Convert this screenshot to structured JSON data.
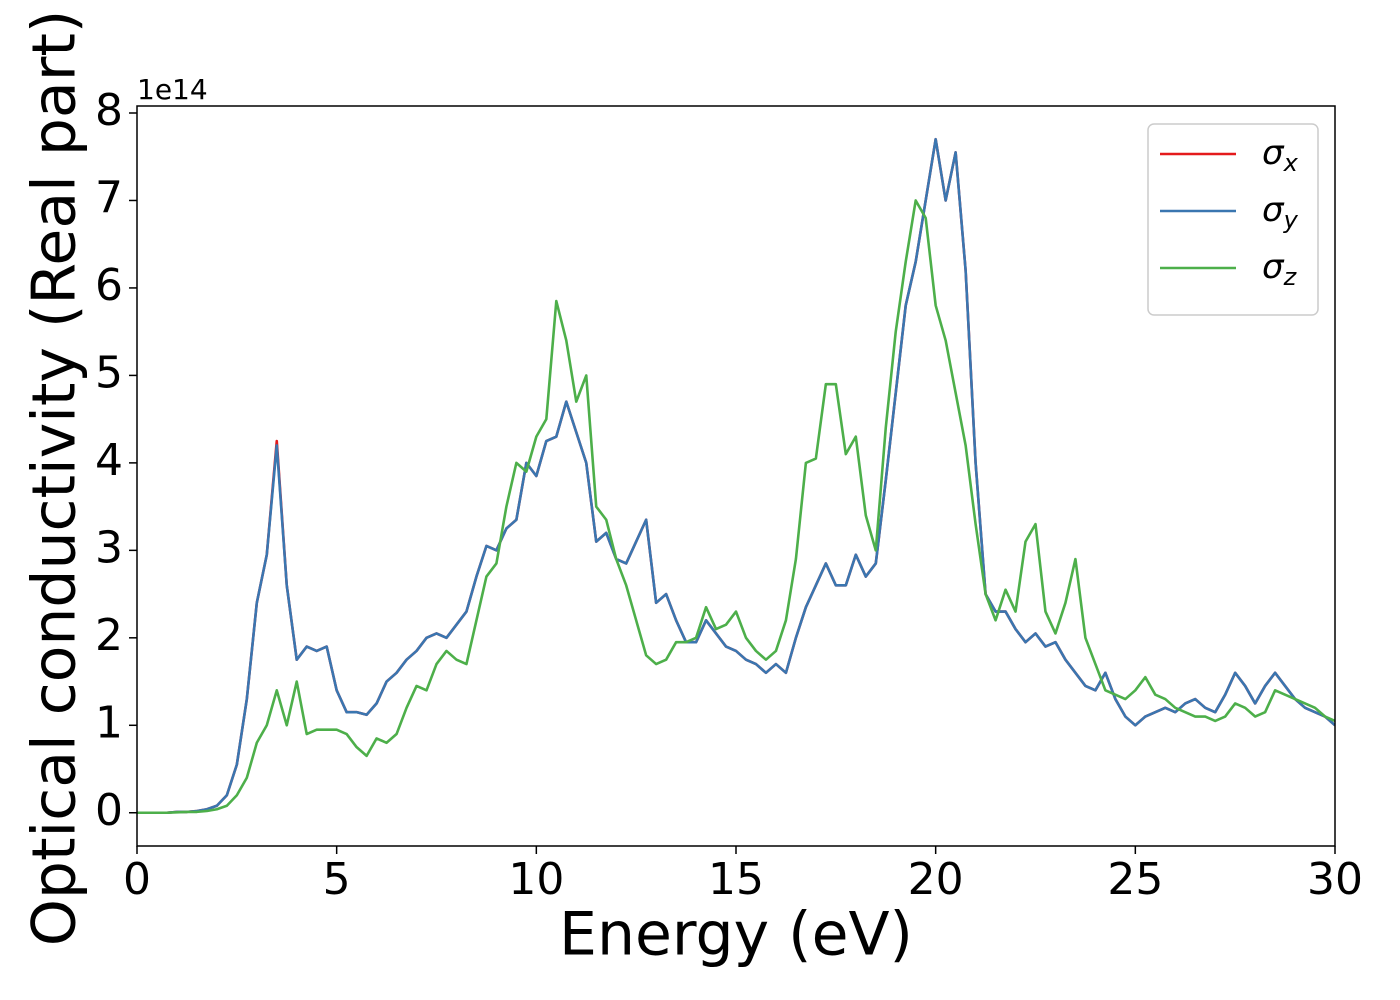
{
  "chart_data": {
    "type": "line",
    "x_label": "Energy (eV)",
    "y_label": "Optical conductivity (Real part)",
    "y_offset_label": "1e14",
    "xlim": [
      0,
      30
    ],
    "ylim": [
      -0.38,
      8.08
    ],
    "xticks": [
      0,
      5,
      10,
      15,
      20,
      25,
      30
    ],
    "yticks": [
      0,
      1,
      2,
      3,
      4,
      5,
      6,
      7,
      8
    ],
    "legend_position": "upper right",
    "x": [
      0,
      0.25,
      0.5,
      0.75,
      1,
      1.25,
      1.5,
      1.75,
      2,
      2.25,
      2.5,
      2.75,
      3,
      3.25,
      3.5,
      3.75,
      4,
      4.25,
      4.5,
      4.75,
      5,
      5.25,
      5.5,
      5.75,
      6,
      6.25,
      6.5,
      6.75,
      7,
      7.25,
      7.5,
      7.75,
      8,
      8.25,
      8.5,
      8.75,
      9,
      9.25,
      9.5,
      9.75,
      10,
      10.25,
      10.5,
      10.75,
      11,
      11.25,
      11.5,
      11.75,
      12,
      12.25,
      12.5,
      12.75,
      13,
      13.25,
      13.5,
      13.75,
      14,
      14.25,
      14.5,
      14.75,
      15,
      15.25,
      15.5,
      15.75,
      16,
      16.25,
      16.5,
      16.75,
      17,
      17.25,
      17.5,
      17.75,
      18,
      18.25,
      18.5,
      18.75,
      19,
      19.25,
      19.5,
      19.75,
      20,
      20.25,
      20.5,
      20.75,
      21,
      21.25,
      21.5,
      21.75,
      22,
      22.25,
      22.5,
      22.75,
      23,
      23.25,
      23.5,
      23.75,
      24,
      24.25,
      24.5,
      24.75,
      25,
      25.25,
      25.5,
      25.75,
      26,
      26.25,
      26.5,
      26.75,
      27,
      27.25,
      27.5,
      27.75,
      28,
      28.25,
      28.5,
      28.75,
      29,
      29.25,
      29.5,
      29.75,
      30
    ],
    "series": [
      {
        "name": "σx",
        "color": "#e41a1c",
        "values": [
          0,
          0,
          0,
          0,
          0.01,
          0.01,
          0.02,
          0.04,
          0.08,
          0.2,
          0.55,
          1.3,
          2.4,
          2.95,
          4.25,
          2.6,
          1.75,
          1.9,
          1.85,
          1.9,
          1.4,
          1.15,
          1.15,
          1.12,
          1.25,
          1.5,
          1.6,
          1.75,
          1.85,
          2.0,
          2.05,
          2.0,
          2.15,
          2.3,
          2.7,
          3.05,
          3.0,
          3.25,
          3.35,
          4.0,
          3.85,
          4.25,
          4.3,
          4.7,
          4.35,
          4.0,
          3.1,
          3.2,
          2.9,
          2.85,
          3.1,
          3.35,
          2.4,
          2.5,
          2.2,
          1.95,
          1.95,
          2.2,
          2.05,
          1.9,
          1.85,
          1.75,
          1.7,
          1.6,
          1.7,
          1.6,
          2.0,
          2.35,
          2.6,
          2.85,
          2.6,
          2.6,
          2.95,
          2.7,
          2.85,
          3.8,
          4.8,
          5.8,
          6.3,
          7.0,
          7.7,
          7.0,
          7.55,
          6.2,
          4.0,
          2.5,
          2.3,
          2.3,
          2.1,
          1.95,
          2.05,
          1.9,
          1.95,
          1.75,
          1.6,
          1.45,
          1.4,
          1.6,
          1.3,
          1.1,
          1.0,
          1.1,
          1.15,
          1.2,
          1.15,
          1.25,
          1.3,
          1.2,
          1.15,
          1.35,
          1.6,
          1.45,
          1.25,
          1.45,
          1.6,
          1.45,
          1.3,
          1.2,
          1.15,
          1.1,
          1.0
        ]
      },
      {
        "name": "σy",
        "color": "#3a76b0",
        "values": [
          0,
          0,
          0,
          0,
          0.01,
          0.01,
          0.02,
          0.04,
          0.08,
          0.2,
          0.55,
          1.3,
          2.4,
          2.95,
          4.2,
          2.6,
          1.75,
          1.9,
          1.85,
          1.9,
          1.4,
          1.15,
          1.15,
          1.12,
          1.25,
          1.5,
          1.6,
          1.75,
          1.85,
          2.0,
          2.05,
          2.0,
          2.15,
          2.3,
          2.7,
          3.05,
          3.0,
          3.25,
          3.35,
          4.0,
          3.85,
          4.25,
          4.3,
          4.7,
          4.35,
          4.0,
          3.1,
          3.2,
          2.9,
          2.85,
          3.1,
          3.35,
          2.4,
          2.5,
          2.2,
          1.95,
          1.95,
          2.2,
          2.05,
          1.9,
          1.85,
          1.75,
          1.7,
          1.6,
          1.7,
          1.6,
          2.0,
          2.35,
          2.6,
          2.85,
          2.6,
          2.6,
          2.95,
          2.7,
          2.85,
          3.8,
          4.8,
          5.8,
          6.3,
          7.0,
          7.7,
          7.0,
          7.55,
          6.2,
          4.0,
          2.5,
          2.3,
          2.3,
          2.1,
          1.95,
          2.05,
          1.9,
          1.95,
          1.75,
          1.6,
          1.45,
          1.4,
          1.6,
          1.3,
          1.1,
          1.0,
          1.1,
          1.15,
          1.2,
          1.15,
          1.25,
          1.3,
          1.2,
          1.15,
          1.35,
          1.6,
          1.45,
          1.25,
          1.45,
          1.6,
          1.45,
          1.3,
          1.2,
          1.15,
          1.1,
          1.0
        ]
      },
      {
        "name": "σz",
        "color": "#4daf4a",
        "values": [
          0,
          0,
          0,
          0,
          0.005,
          0.01,
          0.01,
          0.02,
          0.04,
          0.08,
          0.2,
          0.4,
          0.8,
          1.0,
          1.4,
          1.0,
          1.5,
          0.9,
          0.95,
          0.95,
          0.95,
          0.9,
          0.75,
          0.65,
          0.85,
          0.8,
          0.9,
          1.2,
          1.45,
          1.4,
          1.7,
          1.85,
          1.75,
          1.7,
          2.2,
          2.7,
          2.85,
          3.5,
          4.0,
          3.9,
          4.3,
          4.5,
          5.85,
          5.4,
          4.7,
          5.0,
          3.5,
          3.35,
          2.9,
          2.6,
          2.2,
          1.8,
          1.7,
          1.75,
          1.95,
          1.95,
          2.0,
          2.35,
          2.1,
          2.15,
          2.3,
          2.0,
          1.85,
          1.75,
          1.85,
          2.2,
          2.9,
          4.0,
          4.05,
          4.9,
          4.9,
          4.1,
          4.3,
          3.4,
          3.0,
          4.4,
          5.5,
          6.3,
          7.0,
          6.8,
          5.8,
          5.4,
          4.8,
          4.2,
          3.3,
          2.5,
          2.2,
          2.55,
          2.3,
          3.1,
          3.3,
          2.3,
          2.05,
          2.4,
          2.9,
          2.0,
          1.7,
          1.4,
          1.35,
          1.3,
          1.4,
          1.55,
          1.35,
          1.3,
          1.2,
          1.15,
          1.1,
          1.1,
          1.05,
          1.1,
          1.25,
          1.2,
          1.1,
          1.15,
          1.4,
          1.35,
          1.3,
          1.25,
          1.2,
          1.1,
          1.05
        ]
      }
    ]
  }
}
